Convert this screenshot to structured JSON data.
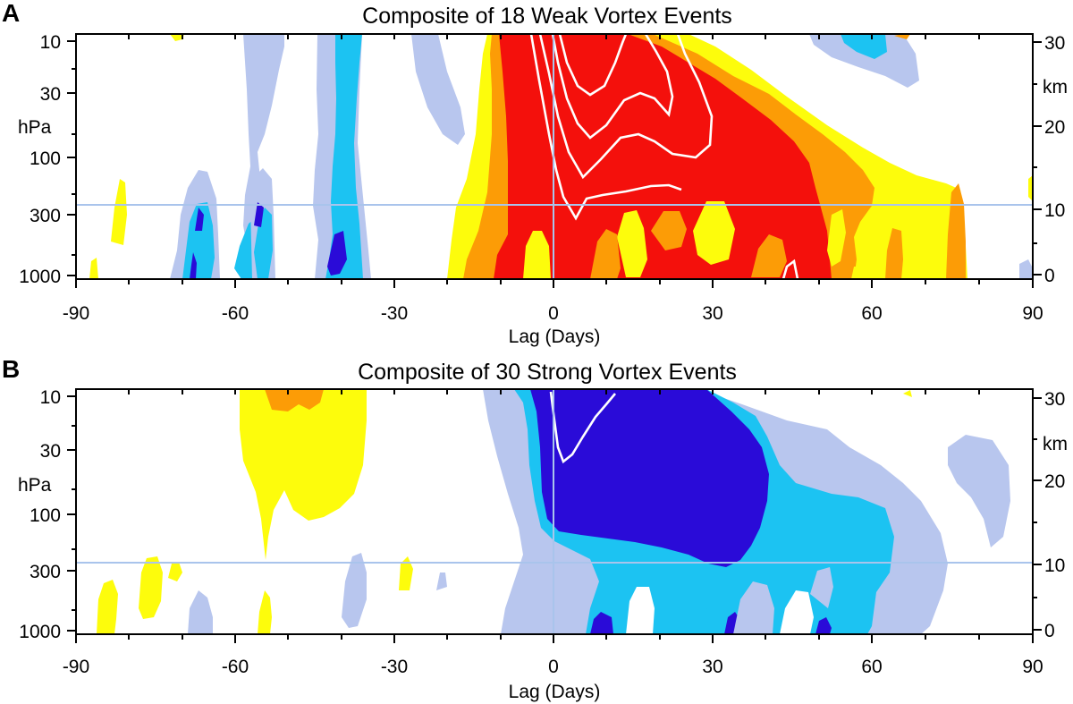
{
  "colors": {
    "strong_negative": "#2a0bd8",
    "moderate_negative": "#1cc3f2",
    "weak_negative": "#b8c6ee",
    "weak_positive": "#fdfc0c",
    "moderate_positive": "#fc9c06",
    "strong_positive": "#f4100c",
    "contour": "#ffffff",
    "reference_lines": "#a9c4ec"
  },
  "chart_data": [
    {
      "type": "heatmap",
      "panel_label": "A",
      "title": "Composite of 18 Weak Vortex Events",
      "xlabel": "Lag (Days)",
      "ylabel": "hPa",
      "ylabel_right": "km",
      "xlim": [
        -90,
        90
      ],
      "ylim_hpa": [
        1000,
        10
      ],
      "y_scale": "log",
      "x_ticks": [
        "-90",
        "-60",
        "-30",
        "0",
        "30",
        "60",
        "90"
      ],
      "y_ticks": [
        "10",
        "30",
        "100",
        "300",
        "1000"
      ],
      "y_right_ticks": [
        "30",
        "20",
        "10",
        "0"
      ],
      "reference_lines": {
        "vertical_x": 0,
        "horizontal_hpa": 250
      },
      "features": [
        {
          "category": "weak_negative",
          "x_range": [
            -59,
            -51
          ],
          "p_range": [
            1000,
            100
          ]
        },
        {
          "category": "moderate_negative",
          "x_range": [
            -54,
            -51
          ],
          "p_range": [
            700,
            200
          ]
        },
        {
          "category": "weak_negative",
          "x_range": [
            -45,
            -36
          ],
          "p_range": [
            1000,
            15
          ]
        },
        {
          "category": "moderate_negative",
          "x_range": [
            -43,
            -38
          ],
          "p_range": [
            1000,
            40
          ]
        },
        {
          "category": "weak_negative",
          "x_range": [
            -73,
            -64
          ],
          "p_range": [
            1000,
            150
          ]
        },
        {
          "category": "moderate_negative",
          "x_range": [
            -70,
            -65
          ],
          "p_range": [
            1000,
            220
          ]
        },
        {
          "category": "strong_negative",
          "x_range": [
            -69,
            -67
          ],
          "p_range": [
            1000,
            350
          ]
        },
        {
          "category": "weak_negative",
          "x_range": [
            -58,
            -50
          ],
          "p_range": [
            1000,
            15
          ]
        },
        {
          "category": "moderate_negative",
          "x_range": [
            -57,
            -53
          ],
          "p_range": [
            900,
            250
          ]
        },
        {
          "category": "weak_negative",
          "x_range": [
            -33,
            -22
          ],
          "p_range": [
            120,
            10
          ]
        },
        {
          "category": "moderate_negative",
          "x_range": [
            -30,
            -25
          ],
          "p_range": [
            45,
            10
          ]
        },
        {
          "category": "weak_negative",
          "x_range": [
            52,
            70
          ],
          "p_range": [
            20,
            10
          ]
        },
        {
          "category": "weak_positive",
          "x_range": [
            -20,
            78
          ],
          "p_range": [
            1000,
            10
          ]
        },
        {
          "category": "moderate_positive",
          "x_range": [
            -12,
            76
          ],
          "p_range": [
            1000,
            10
          ]
        },
        {
          "category": "strong_positive",
          "x_range": [
            -10,
            52
          ],
          "p_range": [
            1000,
            10
          ]
        }
      ]
    },
    {
      "type": "heatmap",
      "panel_label": "B",
      "title": "Composite of 30 Strong Vortex Events",
      "xlabel": "Lag (Days)",
      "ylabel": "hPa",
      "ylabel_right": "km",
      "xlim": [
        -90,
        90
      ],
      "ylim_hpa": [
        1000,
        10
      ],
      "y_scale": "log",
      "x_ticks": [
        "-90",
        "-60",
        "-30",
        "0",
        "30",
        "60",
        "90"
      ],
      "y_ticks": [
        "10",
        "30",
        "100",
        "300",
        "1000"
      ],
      "y_right_ticks": [
        "30",
        "20",
        "10",
        "0"
      ],
      "reference_lines": {
        "vertical_x": 0,
        "horizontal_hpa": 250
      },
      "features": [
        {
          "category": "weak_positive",
          "x_range": [
            -59,
            -35
          ],
          "p_range": [
            250,
            10
          ]
        },
        {
          "category": "moderate_positive",
          "x_range": [
            -55,
            -48
          ],
          "p_range": [
            13,
            10
          ]
        },
        {
          "category": "weak_positive",
          "x_range": [
            -86,
            -60
          ],
          "p_range": [
            1000,
            300
          ]
        },
        {
          "category": "weak_negative",
          "x_range": [
            -15,
            88
          ],
          "p_range": [
            1000,
            10
          ]
        },
        {
          "category": "moderate_negative",
          "x_range": [
            -10,
            65
          ],
          "p_range": [
            1000,
            10
          ]
        },
        {
          "category": "strong_negative",
          "x_range": [
            -3,
            41
          ],
          "p_range": [
            1000,
            10
          ]
        }
      ]
    }
  ]
}
